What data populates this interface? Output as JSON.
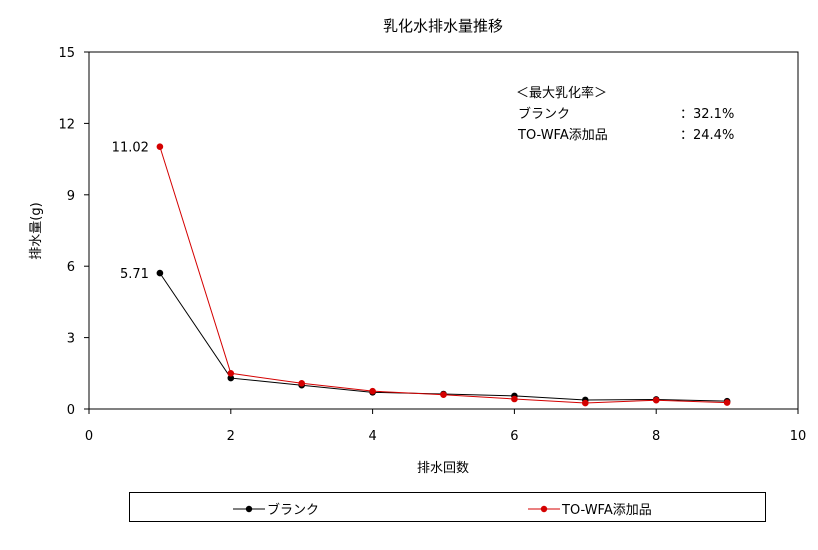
{
  "chart_data": {
    "type": "line",
    "title": "乳化水排水量推移",
    "xlabel": "排水回数",
    "ylabel": "排水量(g)",
    "xlim": [
      0,
      10
    ],
    "ylim": [
      0,
      15
    ],
    "xticks": [
      "0",
      "2",
      "4",
      "6",
      "8",
      "10"
    ],
    "yticks": [
      "0",
      "3",
      "6",
      "9",
      "12",
      "15"
    ],
    "grid": false,
    "legend_position": "bottom",
    "x": [
      1,
      2,
      3,
      4,
      5,
      6,
      7,
      8,
      9
    ],
    "series": [
      {
        "name": "ブランク",
        "color": "#000000",
        "values": [
          5.71,
          1.3,
          1.0,
          0.7,
          0.63,
          0.55,
          0.38,
          0.4,
          0.33
        ]
      },
      {
        "name": "TO-WFA添加品",
        "color": "#d40000",
        "values": [
          11.02,
          1.5,
          1.08,
          0.75,
          0.6,
          0.42,
          0.25,
          0.37,
          0.27
        ]
      }
    ],
    "data_labels": [
      "11.02",
      "5.71"
    ],
    "annotation": {
      "heading": "＜最大乳化率＞",
      "rows": [
        {
          "label": "ブランク",
          "value": "：32.1%"
        },
        {
          "label": "TO-WFA添加品",
          "value": "：24.4%"
        }
      ]
    }
  }
}
